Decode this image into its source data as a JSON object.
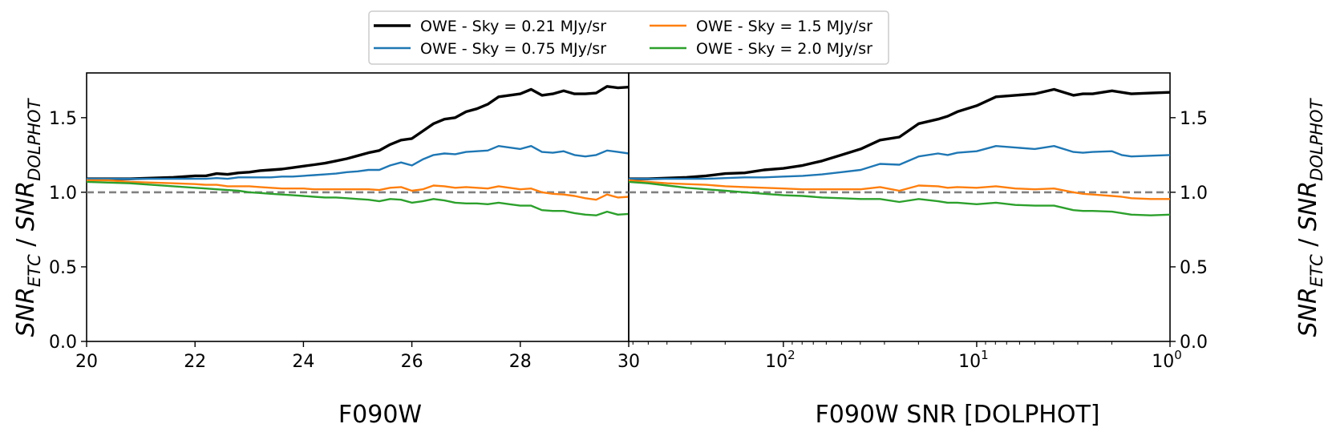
{
  "legend": {
    "entries": [
      {
        "label": "OWE - Sky = 0.21 MJy/sr",
        "color": "#000000"
      },
      {
        "label": "OWE - Sky = 0.75 MJy/sr",
        "color": "#1f77b4"
      },
      {
        "label": "OWE - Sky = 1.5 MJy/sr",
        "color": "#ff7f0e"
      },
      {
        "label": "OWE - Sky = 2.0 MJy/sr",
        "color": "#2ca02c"
      }
    ],
    "placement": "top-center"
  },
  "chart_data": [
    {
      "type": "line",
      "panel": "left",
      "title": "",
      "xlabel": "F090W",
      "ylabel_main": "SNR",
      "ylabel_sub1": "ETC",
      "ylabel_sep": " / ",
      "ylabel_sub2": "DOLPHOT",
      "xlim": [
        20,
        30
      ],
      "ylim": [
        0,
        1.8
      ],
      "xticks": [
        20,
        22,
        24,
        26,
        28,
        30
      ],
      "xtick_labels": [
        "20",
        "22",
        "24",
        "26",
        "28",
        "30"
      ],
      "yticks": [
        0,
        0.5,
        1.0,
        1.5
      ],
      "ytick_labels": [
        "0.0",
        "0.5",
        "1.0",
        "1.5"
      ],
      "reference_line": {
        "y": 1.0,
        "style": "dashed",
        "color": "#808080"
      },
      "x": [
        20.0,
        20.4,
        20.8,
        21.2,
        21.6,
        22.0,
        22.2,
        22.4,
        22.6,
        22.8,
        23.0,
        23.2,
        23.4,
        23.6,
        23.8,
        24.0,
        24.2,
        24.4,
        24.6,
        24.8,
        25.0,
        25.2,
        25.4,
        25.6,
        25.8,
        26.0,
        26.2,
        26.4,
        26.6,
        26.8,
        27.0,
        27.2,
        27.4,
        27.6,
        27.8,
        28.0,
        28.2,
        28.4,
        28.6,
        28.8,
        29.0,
        29.2,
        29.4,
        29.6,
        29.8,
        30.0
      ],
      "series": [
        {
          "name": "OWE - Sky = 0.21 MJy/sr",
          "values": [
            1.09,
            1.09,
            1.09,
            1.095,
            1.1,
            1.11,
            1.11,
            1.125,
            1.12,
            1.13,
            1.135,
            1.145,
            1.15,
            1.155,
            1.165,
            1.175,
            1.185,
            1.195,
            1.21,
            1.225,
            1.245,
            1.265,
            1.28,
            1.32,
            1.35,
            1.36,
            1.41,
            1.46,
            1.49,
            1.5,
            1.54,
            1.56,
            1.59,
            1.64,
            1.65,
            1.66,
            1.69,
            1.65,
            1.66,
            1.68,
            1.66,
            1.66,
            1.665,
            1.71,
            1.7,
            1.705
          ]
        },
        {
          "name": "OWE - Sky = 0.75 MJy/sr",
          "values": [
            1.09,
            1.09,
            1.09,
            1.09,
            1.09,
            1.09,
            1.09,
            1.095,
            1.09,
            1.1,
            1.1,
            1.1,
            1.1,
            1.105,
            1.105,
            1.11,
            1.115,
            1.12,
            1.125,
            1.135,
            1.14,
            1.15,
            1.15,
            1.18,
            1.2,
            1.18,
            1.22,
            1.25,
            1.26,
            1.255,
            1.27,
            1.275,
            1.28,
            1.31,
            1.3,
            1.29,
            1.31,
            1.27,
            1.265,
            1.275,
            1.25,
            1.24,
            1.25,
            1.28,
            1.27,
            1.26
          ]
        },
        {
          "name": "OWE - Sky = 1.5 MJy/sr",
          "values": [
            1.08,
            1.08,
            1.07,
            1.065,
            1.06,
            1.055,
            1.05,
            1.05,
            1.04,
            1.04,
            1.04,
            1.035,
            1.03,
            1.025,
            1.025,
            1.025,
            1.02,
            1.02,
            1.02,
            1.02,
            1.02,
            1.02,
            1.015,
            1.03,
            1.035,
            1.01,
            1.02,
            1.045,
            1.04,
            1.03,
            1.035,
            1.03,
            1.025,
            1.04,
            1.03,
            1.02,
            1.025,
            1.0,
            0.99,
            0.985,
            0.975,
            0.96,
            0.95,
            0.985,
            0.965,
            0.97
          ]
        },
        {
          "name": "OWE - Sky = 2.0 MJy/sr",
          "values": [
            1.07,
            1.065,
            1.06,
            1.05,
            1.04,
            1.03,
            1.025,
            1.02,
            1.015,
            1.01,
            1.0,
            0.995,
            0.99,
            0.985,
            0.98,
            0.975,
            0.97,
            0.965,
            0.965,
            0.96,
            0.955,
            0.95,
            0.94,
            0.955,
            0.95,
            0.93,
            0.94,
            0.955,
            0.945,
            0.93,
            0.925,
            0.925,
            0.92,
            0.93,
            0.92,
            0.91,
            0.91,
            0.88,
            0.875,
            0.875,
            0.86,
            0.85,
            0.845,
            0.87,
            0.85,
            0.855
          ]
        }
      ]
    },
    {
      "type": "line",
      "panel": "right",
      "title": "",
      "xlabel": "F090W SNR [DOLPHOT]",
      "ylabel_main": "SNR",
      "ylabel_sub1": "ETC",
      "ylabel_sep": " / ",
      "ylabel_sub2": "DOLPHOT",
      "xscale": "log",
      "xlim_log10": [
        2.8,
        0.0
      ],
      "x_inverted": true,
      "ylim": [
        0,
        1.8
      ],
      "major_ticks": [
        {
          "base": "10",
          "exp": "2",
          "log": 2.0
        },
        {
          "base": "10",
          "exp": "1",
          "log": 1.0
        },
        {
          "base": "10",
          "exp": "0",
          "log": 0.0
        }
      ],
      "left_edge_tick": "30",
      "yticks": [
        0,
        0.5,
        1.0,
        1.5
      ],
      "ytick_labels": [
        "0.0",
        "0.5",
        "1.0",
        "1.5"
      ],
      "reference_line": {
        "y": 1.0,
        "style": "dashed",
        "color": "#808080"
      },
      "x_log10": [
        2.8,
        2.7,
        2.6,
        2.5,
        2.4,
        2.3,
        2.2,
        2.1,
        2.0,
        1.9,
        1.8,
        1.7,
        1.6,
        1.5,
        1.4,
        1.3,
        1.2,
        1.15,
        1.1,
        1.0,
        0.9,
        0.8,
        0.7,
        0.6,
        0.5,
        0.45,
        0.4,
        0.3,
        0.25,
        0.2,
        0.1,
        0.0
      ],
      "series": [
        {
          "name": "OWE - Sky = 0.21 MJy/sr",
          "values": [
            1.09,
            1.09,
            1.095,
            1.1,
            1.11,
            1.125,
            1.13,
            1.15,
            1.16,
            1.18,
            1.21,
            1.25,
            1.29,
            1.35,
            1.37,
            1.46,
            1.49,
            1.51,
            1.54,
            1.58,
            1.64,
            1.65,
            1.66,
            1.69,
            1.65,
            1.66,
            1.66,
            1.68,
            1.67,
            1.66,
            1.665,
            1.67
          ]
        },
        {
          "name": "OWE - Sky = 0.75 MJy/sr",
          "values": [
            1.09,
            1.09,
            1.09,
            1.09,
            1.09,
            1.095,
            1.1,
            1.1,
            1.105,
            1.11,
            1.12,
            1.135,
            1.15,
            1.19,
            1.185,
            1.24,
            1.26,
            1.25,
            1.265,
            1.275,
            1.31,
            1.3,
            1.29,
            1.31,
            1.27,
            1.265,
            1.27,
            1.275,
            1.25,
            1.24,
            1.245,
            1.25
          ]
        },
        {
          "name": "OWE - Sky = 1.5 MJy/sr",
          "values": [
            1.08,
            1.07,
            1.06,
            1.055,
            1.05,
            1.04,
            1.035,
            1.03,
            1.025,
            1.02,
            1.02,
            1.02,
            1.02,
            1.035,
            1.01,
            1.045,
            1.04,
            1.03,
            1.035,
            1.03,
            1.04,
            1.025,
            1.02,
            1.025,
            1.0,
            0.99,
            0.985,
            0.975,
            0.97,
            0.96,
            0.955,
            0.955
          ]
        },
        {
          "name": "OWE - Sky = 2.0 MJy/sr",
          "values": [
            1.07,
            1.06,
            1.045,
            1.03,
            1.02,
            1.01,
            1.0,
            0.99,
            0.98,
            0.975,
            0.965,
            0.96,
            0.955,
            0.955,
            0.935,
            0.955,
            0.94,
            0.93,
            0.93,
            0.92,
            0.93,
            0.915,
            0.91,
            0.91,
            0.88,
            0.875,
            0.875,
            0.87,
            0.86,
            0.85,
            0.845,
            0.85
          ]
        }
      ]
    }
  ]
}
